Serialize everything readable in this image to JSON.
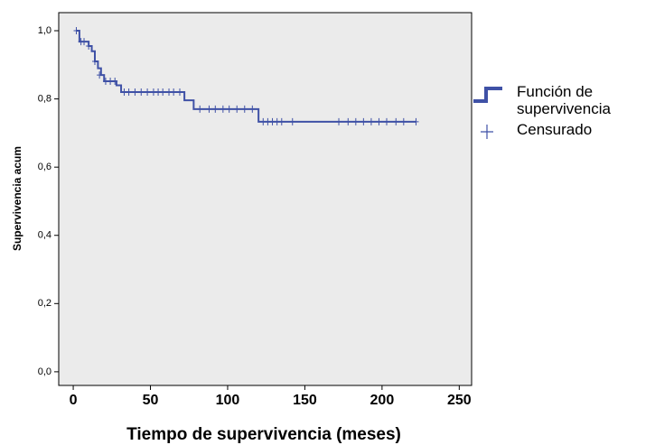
{
  "chart_data": {
    "type": "line",
    "step": "post",
    "x_label": "Tiempo de supervivencia (meses)",
    "y_label": "Supervivencia acum",
    "xlim": [
      -9.4,
      258
    ],
    "ylim": [
      -0.04,
      1.053
    ],
    "xticks": [
      0,
      50,
      100,
      150,
      200,
      250
    ],
    "yticks": [
      {
        "value": 0,
        "label": "0,0"
      },
      {
        "value": 0.2,
        "label": "0,2"
      },
      {
        "value": 0.4,
        "label": "0,4"
      },
      {
        "value": 0.6,
        "label": "0,6"
      },
      {
        "value": 0.8,
        "label": "0,8"
      },
      {
        "value": 1,
        "label": "1,0"
      }
    ],
    "series": [
      {
        "name": "Función de supervivencia",
        "color": "#3f51a6",
        "x": [
          2,
          4,
          10,
          12,
          14,
          16,
          18,
          20,
          28,
          31,
          72,
          78,
          120,
          222
        ],
        "values": [
          1,
          0.968,
          0.955,
          0.94,
          0.91,
          0.89,
          0.87,
          0.852,
          0.84,
          0.82,
          0.796,
          0.77,
          0.733,
          0.733
        ]
      },
      {
        "name": "Censurado",
        "color": "#3f51a6",
        "marker": "plus",
        "x": [
          2,
          5,
          7,
          10,
          14,
          17,
          21,
          24,
          27,
          33,
          36,
          40,
          44,
          48,
          52,
          55,
          58,
          62,
          65,
          69,
          82,
          88,
          92,
          97,
          101,
          106,
          111,
          116,
          123,
          126,
          129,
          132,
          135,
          142,
          172,
          178,
          183,
          188,
          193,
          198,
          203,
          209,
          214,
          222
        ],
        "values": [
          1,
          0.968,
          0.968,
          0.955,
          0.91,
          0.87,
          0.852,
          0.852,
          0.852,
          0.82,
          0.82,
          0.82,
          0.82,
          0.82,
          0.82,
          0.82,
          0.82,
          0.82,
          0.82,
          0.82,
          0.77,
          0.77,
          0.77,
          0.77,
          0.77,
          0.77,
          0.77,
          0.77,
          0.733,
          0.733,
          0.733,
          0.733,
          0.733,
          0.733,
          0.733,
          0.733,
          0.733,
          0.733,
          0.733,
          0.733,
          0.733,
          0.733,
          0.733,
          0.733
        ]
      }
    ]
  }
}
